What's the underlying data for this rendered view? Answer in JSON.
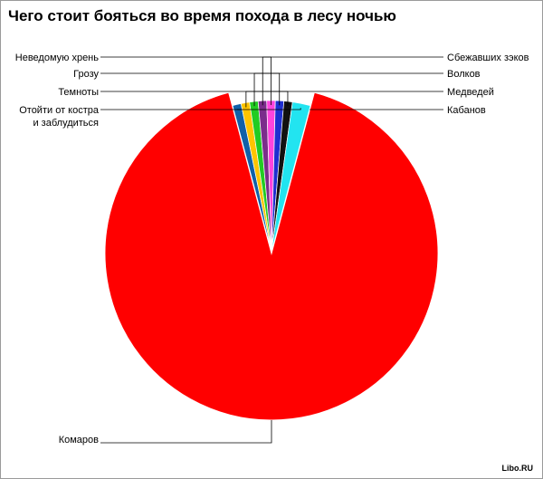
{
  "chart_data": {
    "type": "pie",
    "title": "Чего стоит бояться во время похода в лесу ночью",
    "slices": [
      {
        "label": "Комаров",
        "value": 90.8,
        "color": "#ff0000"
      },
      {
        "label": "Кабанов",
        "value": 0.9,
        "color": "#1060a8"
      },
      {
        "label": "Медведей",
        "value": 0.9,
        "color": "#ffc400"
      },
      {
        "label": "Волков",
        "value": 0.9,
        "color": "#22cc22"
      },
      {
        "label": "Сбежавших зэков",
        "value": 0.9,
        "color": "#7b2d8b"
      },
      {
        "label": "Неведомую хрень",
        "value": 0.9,
        "color": "#ff44dd"
      },
      {
        "label": "Грозу",
        "value": 0.9,
        "color": "#1f2fd0"
      },
      {
        "label": "Темноты",
        "value": 0.9,
        "color": "#111111"
      },
      {
        "label": "Отойти от костра и заблудиться",
        "label_lines": [
          "Отойти от костра",
          "и заблудиться"
        ],
        "value": 1.9,
        "color": "#22e4f0"
      }
    ],
    "legend": "none",
    "labels": "callouts"
  },
  "watermark": "Libo.RU"
}
